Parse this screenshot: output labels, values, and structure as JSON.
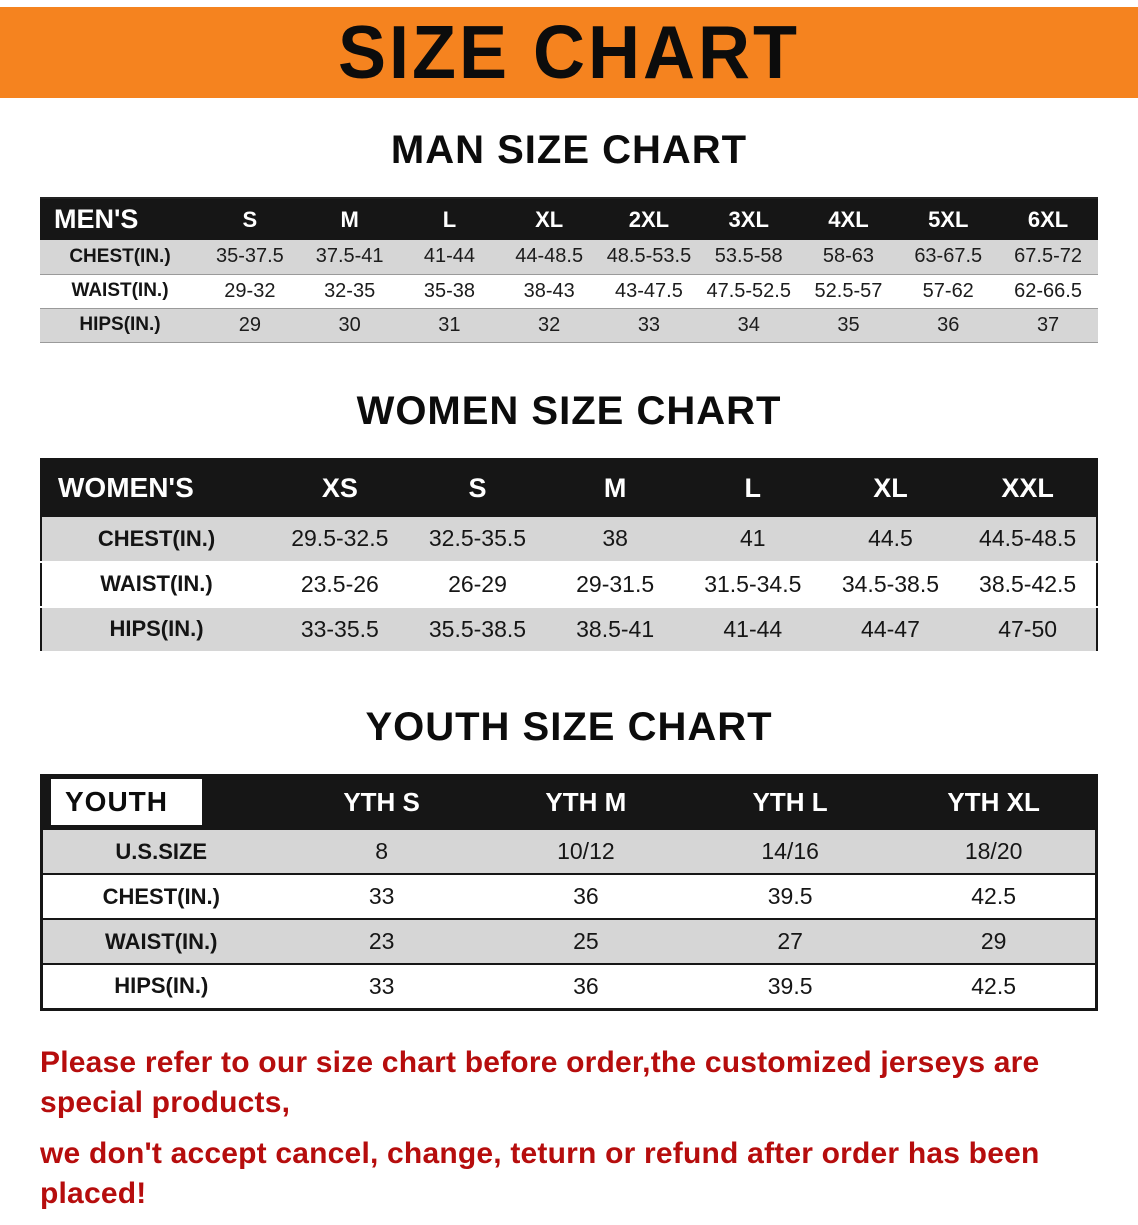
{
  "banner": {
    "title": "SIZE CHART"
  },
  "colors": {
    "banner_bg": "#f5831f",
    "table_header_bg": "#161616",
    "row_stripe": "#d6d6d6",
    "notice_text": "#b60d0d"
  },
  "sections": [
    {
      "heading": "MAN SIZE CHART",
      "table": {
        "header": [
          "MEN'S",
          "S",
          "M",
          "L",
          "XL",
          "2XL",
          "3XL",
          "4XL",
          "5XL",
          "6XL"
        ],
        "rows": [
          [
            "CHEST(IN.)",
            "35-37.5",
            "37.5-41",
            "41-44",
            "44-48.5",
            "48.5-53.5",
            "53.5-58",
            "58-63",
            "63-67.5",
            "67.5-72"
          ],
          [
            "WAIST(IN.)",
            "29-32",
            "32-35",
            "35-38",
            "38-43",
            "43-47.5",
            "47.5-52.5",
            "52.5-57",
            "57-62",
            "62-66.5"
          ],
          [
            "HIPS(IN.)",
            "29",
            "30",
            "31",
            "32",
            "33",
            "34",
            "35",
            "36",
            "37"
          ]
        ]
      }
    },
    {
      "heading": "WOMEN SIZE CHART",
      "table": {
        "header": [
          "WOMEN'S",
          "XS",
          "S",
          "M",
          "L",
          "XL",
          "XXL"
        ],
        "rows": [
          [
            "CHEST(IN.)",
            "29.5-32.5",
            "32.5-35.5",
            "38",
            "41",
            "44.5",
            "44.5-48.5"
          ],
          [
            "WAIST(IN.)",
            "23.5-26",
            "26-29",
            "29-31.5",
            "31.5-34.5",
            "34.5-38.5",
            "38.5-42.5"
          ],
          [
            "HIPS(IN.)",
            "33-35.5",
            "35.5-38.5",
            "38.5-41",
            "41-44",
            "44-47",
            "47-50"
          ]
        ]
      }
    },
    {
      "heading": "YOUTH SIZE CHART",
      "table": {
        "label_boxed": true,
        "header": [
          "YOUTH",
          "YTH S",
          "YTH M",
          "YTH L",
          "YTH XL"
        ],
        "rows": [
          [
            "U.S.SIZE",
            "8",
            "10/12",
            "14/16",
            "18/20"
          ],
          [
            "CHEST(IN.)",
            "33",
            "36",
            "39.5",
            "42.5"
          ],
          [
            "WAIST(IN.)",
            "23",
            "25",
            "27",
            "29"
          ],
          [
            "HIPS(IN.)",
            "33",
            "36",
            "39.5",
            "42.5"
          ]
        ]
      }
    }
  ],
  "notice": {
    "lines": [
      "Please refer to our size chart before order,the customized jerseys are special products,",
      "we don't accept cancel, change, teturn or refund after order has been placed!"
    ]
  }
}
